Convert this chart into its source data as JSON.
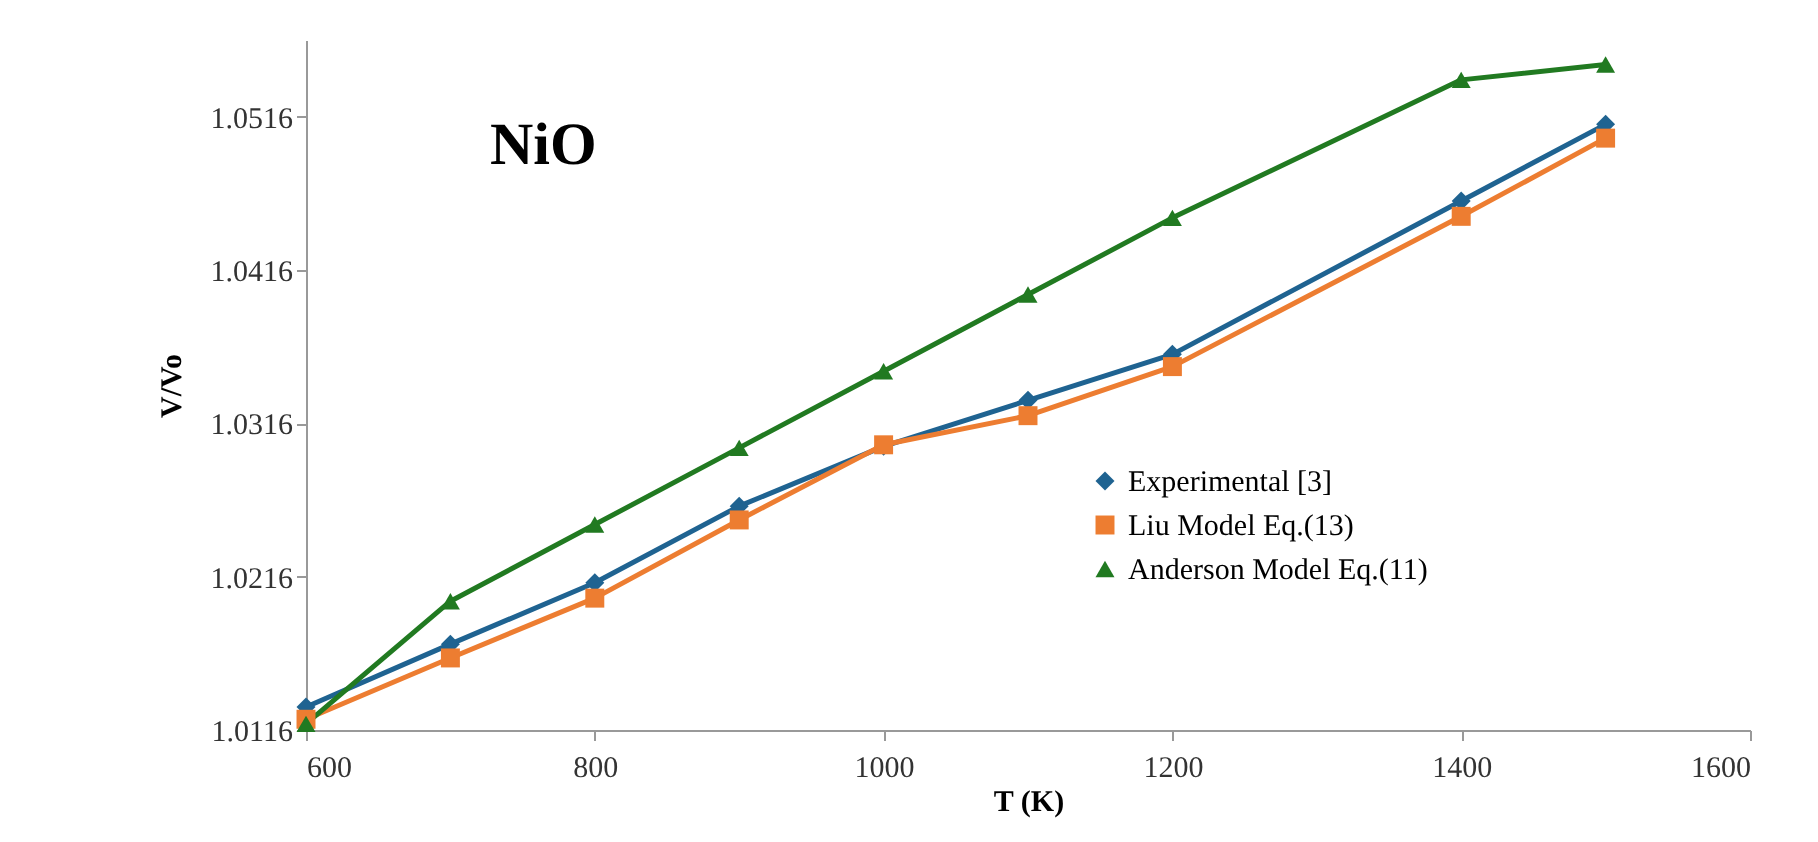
{
  "chart_data": {
    "type": "line",
    "xlabel": "T (K)",
    "ylabel": "V/Vo",
    "annotations": [
      "NiO"
    ],
    "x": [
      600,
      700,
      800,
      900,
      1000,
      1100,
      1200,
      1400,
      1500
    ],
    "series": [
      {
        "name": "Experimental [3]",
        "color": "#1f6391",
        "marker": "diamond",
        "values": [
          1.0131,
          1.0172,
          1.0212,
          1.0262,
          1.0301,
          1.0331,
          1.0361,
          1.0461,
          1.0511
        ]
      },
      {
        "name": "Liu Model Eq.(13)",
        "color": "#ed7d31",
        "marker": "square",
        "values": [
          1.0123,
          1.0163,
          1.0202,
          1.0253,
          1.0302,
          1.0321,
          1.0353,
          1.0451,
          1.0502
        ]
      },
      {
        "name": "Anderson Model Eq.(11)",
        "color": "#217a21",
        "marker": "triangle",
        "values": [
          1.012,
          1.02,
          1.025,
          1.03,
          1.035,
          1.04,
          1.045,
          1.054,
          1.055
        ]
      }
    ],
    "xlim": [
      600,
      1600
    ],
    "xticks": [
      600,
      800,
      1000,
      1200,
      1400,
      1600
    ],
    "ylim": [
      1.0116,
      1.0566
    ],
    "yticks": [
      1.0116,
      1.0216,
      1.0316,
      1.0416,
      1.0516
    ],
    "grid": false,
    "legend": "right",
    "line_style": "solid"
  }
}
